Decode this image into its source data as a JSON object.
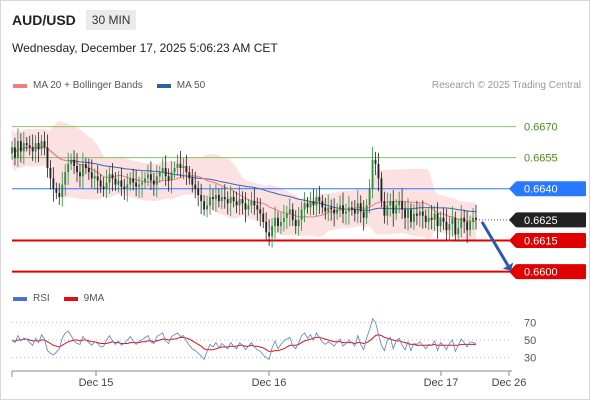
{
  "header": {
    "symbol": "AUD/USD",
    "timeframe": "30 MIN"
  },
  "datetime": "Wednesday, December 17, 2025 5:06:23 AM CET",
  "legend": [
    {
      "label": "MA 20 + Bollinger Bands",
      "color": "#f08080"
    },
    {
      "label": "MA 50",
      "color": "#2e5fa8"
    }
  ],
  "credit": "Research © 2025 Trading Central",
  "rsi_legend": [
    {
      "label": "RSI",
      "color": "#4a72c8"
    },
    {
      "label": "9MA",
      "color": "#e01010"
    }
  ],
  "chart_data": {
    "type": "candlestick",
    "ylim": [
      0.6595,
      0.6678
    ],
    "x_ticks": [
      "Dec 15",
      "Dec 16",
      "Dec 17",
      "Dec 26"
    ],
    "levels": [
      {
        "value": 0.667,
        "label": "0.6670",
        "kind": "resistance-faint",
        "color": "#8cc060"
      },
      {
        "value": 0.6655,
        "label": "0.6655",
        "kind": "resistance-faint",
        "color": "#8cc060"
      },
      {
        "value": 0.664,
        "label": "0.6640",
        "kind": "pivot",
        "color": "#2979ff"
      },
      {
        "value": 0.6625,
        "label": "0.6625",
        "kind": "last-price",
        "color": "#222222"
      },
      {
        "value": 0.6615,
        "label": "0.6615",
        "kind": "support",
        "color": "#e00000"
      },
      {
        "value": 0.66,
        "label": "0.6600",
        "kind": "support",
        "color": "#e00000"
      }
    ],
    "close_series": [
      0.666,
      0.6655,
      0.6663,
      0.6658,
      0.6662,
      0.6661,
      0.666,
      0.6658,
      0.6662,
      0.6659,
      0.6663,
      0.666,
      0.665,
      0.6645,
      0.664,
      0.6638,
      0.6636,
      0.6642,
      0.6648,
      0.6652,
      0.6654,
      0.6651,
      0.6648,
      0.6646,
      0.6652,
      0.665,
      0.6648,
      0.6645,
      0.6646,
      0.6644,
      0.6641,
      0.664,
      0.6643,
      0.6647,
      0.6645,
      0.6642,
      0.6644,
      0.6641,
      0.664,
      0.6642,
      0.6645,
      0.6643,
      0.6641,
      0.6642,
      0.6643,
      0.6645,
      0.6647,
      0.6644,
      0.6642,
      0.6646,
      0.6648,
      0.665,
      0.6646,
      0.6644,
      0.6648,
      0.665,
      0.6652,
      0.665,
      0.6651,
      0.6648,
      0.6645,
      0.6642,
      0.664,
      0.6637,
      0.6634,
      0.663,
      0.6632,
      0.6636,
      0.6635,
      0.6637,
      0.6634,
      0.6636,
      0.6635,
      0.6633,
      0.6636,
      0.6634,
      0.6632,
      0.6635,
      0.6633,
      0.663,
      0.6632,
      0.6634,
      0.6632,
      0.663,
      0.6628,
      0.6624,
      0.6619,
      0.6617,
      0.6622,
      0.6626,
      0.6622,
      0.6624,
      0.6626,
      0.6628,
      0.663,
      0.6625,
      0.6622,
      0.6625,
      0.663,
      0.6633,
      0.6631,
      0.6634,
      0.6632,
      0.6636,
      0.6634,
      0.6631,
      0.6629,
      0.6631,
      0.663,
      0.6628,
      0.663,
      0.6632,
      0.6628,
      0.6629,
      0.6631,
      0.663,
      0.6628,
      0.6633,
      0.6629,
      0.6626,
      0.6632,
      0.664,
      0.6654,
      0.6652,
      0.6645,
      0.6634,
      0.6627,
      0.6632,
      0.6634,
      0.6628,
      0.6632,
      0.6634,
      0.663,
      0.6626,
      0.663,
      0.6624,
      0.6628,
      0.6627,
      0.6629,
      0.6627,
      0.6624,
      0.6626,
      0.6625,
      0.6628,
      0.6622,
      0.6626,
      0.6624,
      0.662,
      0.6623,
      0.6626,
      0.6618,
      0.6621,
      0.6626,
      0.6624,
      0.662,
      0.6624,
      0.6626,
      0.6625
    ],
    "projection": {
      "from": 0.6625,
      "to": 0.66
    },
    "rsi": {
      "ticks": [
        70,
        50,
        30
      ],
      "ylim": [
        25,
        75
      ],
      "rsi_series": [
        50,
        47,
        55,
        49,
        52,
        51,
        47,
        44,
        52,
        47,
        56,
        51,
        38,
        35,
        33,
        36,
        40,
        52,
        58,
        60,
        55,
        49,
        46,
        45,
        54,
        50,
        47,
        44,
        48,
        46,
        42,
        43,
        50,
        55,
        49,
        45,
        49,
        44,
        46,
        50,
        54,
        49,
        45,
        49,
        50,
        53,
        55,
        48,
        46,
        54,
        56,
        58,
        49,
        46,
        54,
        56,
        58,
        54,
        55,
        49,
        44,
        40,
        38,
        35,
        32,
        28,
        37,
        45,
        42,
        47,
        41,
        46,
        43,
        40,
        47,
        43,
        40,
        47,
        44,
        39,
        43,
        47,
        42,
        39,
        37,
        33,
        30,
        28,
        41,
        49,
        40,
        45,
        49,
        51,
        53,
        43,
        40,
        47,
        55,
        58,
        52,
        56,
        50,
        58,
        53,
        48,
        45,
        48,
        46,
        43,
        48,
        51,
        43,
        46,
        50,
        47,
        43,
        55,
        45,
        39,
        52,
        62,
        74,
        70,
        56,
        44,
        38,
        50,
        53,
        40,
        49,
        52,
        44,
        39,
        48,
        38,
        46,
        45,
        48,
        44,
        40,
        45,
        44,
        49,
        38,
        47,
        44,
        39,
        46,
        50,
        37,
        44,
        51,
        47,
        42,
        48,
        47,
        46
      ],
      "ma_series": [
        49,
        49,
        50,
        50,
        51,
        51,
        50,
        49,
        49,
        49,
        50,
        50,
        48,
        46,
        44,
        43,
        42,
        44,
        46,
        48,
        49,
        50,
        50,
        49,
        50,
        50,
        49,
        48,
        48,
        47,
        46,
        46,
        46,
        47,
        48,
        47,
        47,
        46,
        46,
        46,
        47,
        47,
        47,
        47,
        48,
        48,
        49,
        49,
        48,
        49,
        50,
        51,
        51,
        50,
        51,
        51,
        52,
        53,
        53,
        52,
        51,
        49,
        47,
        45,
        43,
        40,
        39,
        39,
        39,
        40,
        41,
        42,
        42,
        42,
        43,
        43,
        43,
        44,
        44,
        43,
        43,
        44,
        43,
        43,
        42,
        41,
        39,
        37,
        37,
        38,
        38,
        39,
        40,
        42,
        44,
        44,
        44,
        45,
        47,
        49,
        50,
        51,
        52,
        53,
        53,
        52,
        51,
        50,
        49,
        48,
        48,
        48,
        47,
        47,
        47,
        47,
        46,
        47,
        47,
        46,
        47,
        49,
        52,
        55,
        56,
        55,
        53,
        52,
        51,
        50,
        49,
        49,
        48,
        47,
        46,
        45,
        45,
        44,
        44,
        44,
        44,
        44,
        44,
        45,
        44,
        44,
        44,
        44,
        44,
        44,
        44,
        44,
        45,
        45,
        45,
        45,
        45,
        45
      ]
    }
  }
}
